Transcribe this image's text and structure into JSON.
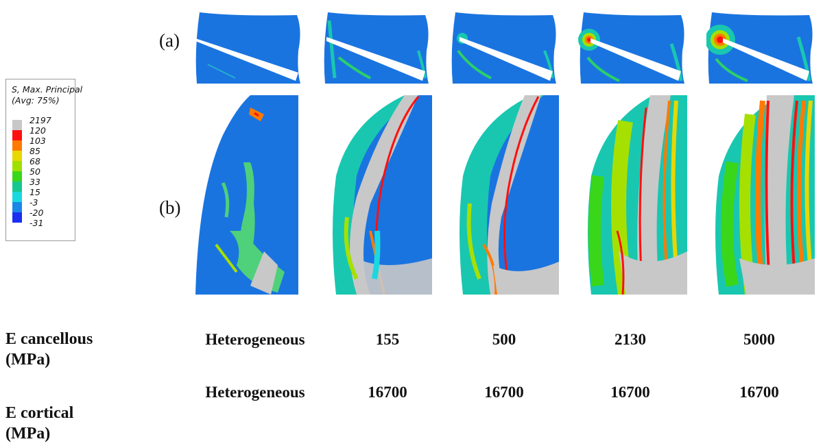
{
  "legend": {
    "title_line1": "S, Max. Principal",
    "title_line2": "(Avg: 75%)",
    "ticks": [
      "2197",
      "120",
      "103",
      "85",
      "68",
      "50",
      "33",
      "15",
      "-3",
      "-20",
      "-31"
    ],
    "colors": [
      "#c8c8c8",
      "#ff1010",
      "#ff7a00",
      "#e6d800",
      "#a0e000",
      "#3ad61a",
      "#16c890",
      "#1ad8e0",
      "#1a86e8",
      "#1a2ff0",
      "#3a3a3a"
    ]
  },
  "panels": {
    "label_a": "(a)",
    "label_b": "(b)"
  },
  "table": {
    "row1_label_line1": "E cancellous",
    "row1_label_line2": "(MPa)",
    "row2_label_line1": "E cortical",
    "row2_label_line2": "(MPa)",
    "cancellous": [
      "Heterogeneous",
      "155",
      "500",
      "2130",
      "5000"
    ],
    "cortical": [
      "Heterogeneous",
      "16700",
      "16700",
      "16700",
      "16700"
    ]
  }
}
